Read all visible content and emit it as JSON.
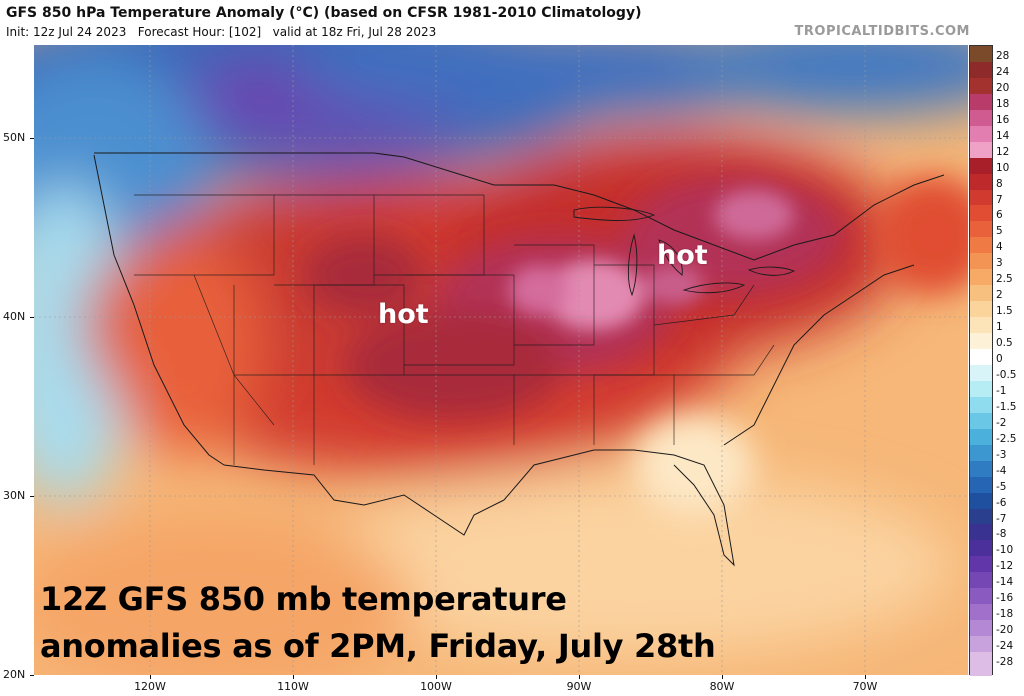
{
  "header": {
    "title": "GFS 850 hPa Temperature Anomaly (°C) (based on CFSR 1981-2010 Climatology)",
    "subtitle": "Init: 12z Jul 24 2023   Forecast Hour: [102]   valid at 18z Fri, Jul 28 2023",
    "brand": "TROPICALTIDBITS.COM"
  },
  "axes": {
    "lat_labels": [
      "50N",
      "40N",
      "30N",
      "20N"
    ],
    "lon_labels": [
      "120W",
      "110W",
      "100W",
      "90W",
      "80W",
      "70W"
    ]
  },
  "annotations": {
    "hot_west": "hot",
    "hot_east": "hot"
  },
  "caption": {
    "line1": "12Z GFS 850 mb temperature",
    "line2": "anomalies as of 2PM, Friday, July 28th"
  },
  "legend": {
    "items": [
      {
        "label": "28",
        "color": "#7a4a2a"
      },
      {
        "label": "24",
        "color": "#8e2a2a"
      },
      {
        "label": "20",
        "color": "#a3322f"
      },
      {
        "label": "18",
        "color": "#b93b6a"
      },
      {
        "label": "16",
        "color": "#cf5b91"
      },
      {
        "label": "14",
        "color": "#e27fb0"
      },
      {
        "label": "12",
        "color": "#efa2c6"
      },
      {
        "label": "10",
        "color": "#a81f2a"
      },
      {
        "label": "8",
        "color": "#be2a2c"
      },
      {
        "label": "7",
        "color": "#d13a2e"
      },
      {
        "label": "6",
        "color": "#e04d33"
      },
      {
        "label": "5",
        "color": "#e8613a"
      },
      {
        "label": "4",
        "color": "#ef7a44"
      },
      {
        "label": "3",
        "color": "#f39354"
      },
      {
        "label": "2.5",
        "color": "#f6aa66"
      },
      {
        "label": "2",
        "color": "#f8c07e"
      },
      {
        "label": "1.5",
        "color": "#fad49a"
      },
      {
        "label": "1",
        "color": "#fce4b8"
      },
      {
        "label": "0.5",
        "color": "#fdf1d8"
      },
      {
        "label": "0",
        "color": "#ffffff"
      },
      {
        "label": "-0.5",
        "color": "#d8f4f8"
      },
      {
        "label": "-1",
        "color": "#b6ecf4"
      },
      {
        "label": "-1.5",
        "color": "#8fdcee"
      },
      {
        "label": "-2",
        "color": "#6ac8e6"
      },
      {
        "label": "-2.5",
        "color": "#4cb0dc"
      },
      {
        "label": "-3",
        "color": "#3c96d0"
      },
      {
        "label": "-4",
        "color": "#2f7cc2"
      },
      {
        "label": "-5",
        "color": "#2665b3"
      },
      {
        "label": "-6",
        "color": "#1f50a0"
      },
      {
        "label": "-7",
        "color": "#2a3f8e"
      },
      {
        "label": "-8",
        "color": "#3a3290"
      },
      {
        "label": "-10",
        "color": "#4b2f9a"
      },
      {
        "label": "-12",
        "color": "#6036a8"
      },
      {
        "label": "-14",
        "color": "#7547b5"
      },
      {
        "label": "-16",
        "color": "#8a5ac0"
      },
      {
        "label": "-18",
        "color": "#a070cb"
      },
      {
        "label": "-20",
        "color": "#b488d4"
      },
      {
        "label": "-24",
        "color": "#c8a2dd"
      },
      {
        "label": "-28",
        "color": "#ddbde6"
      }
    ]
  }
}
